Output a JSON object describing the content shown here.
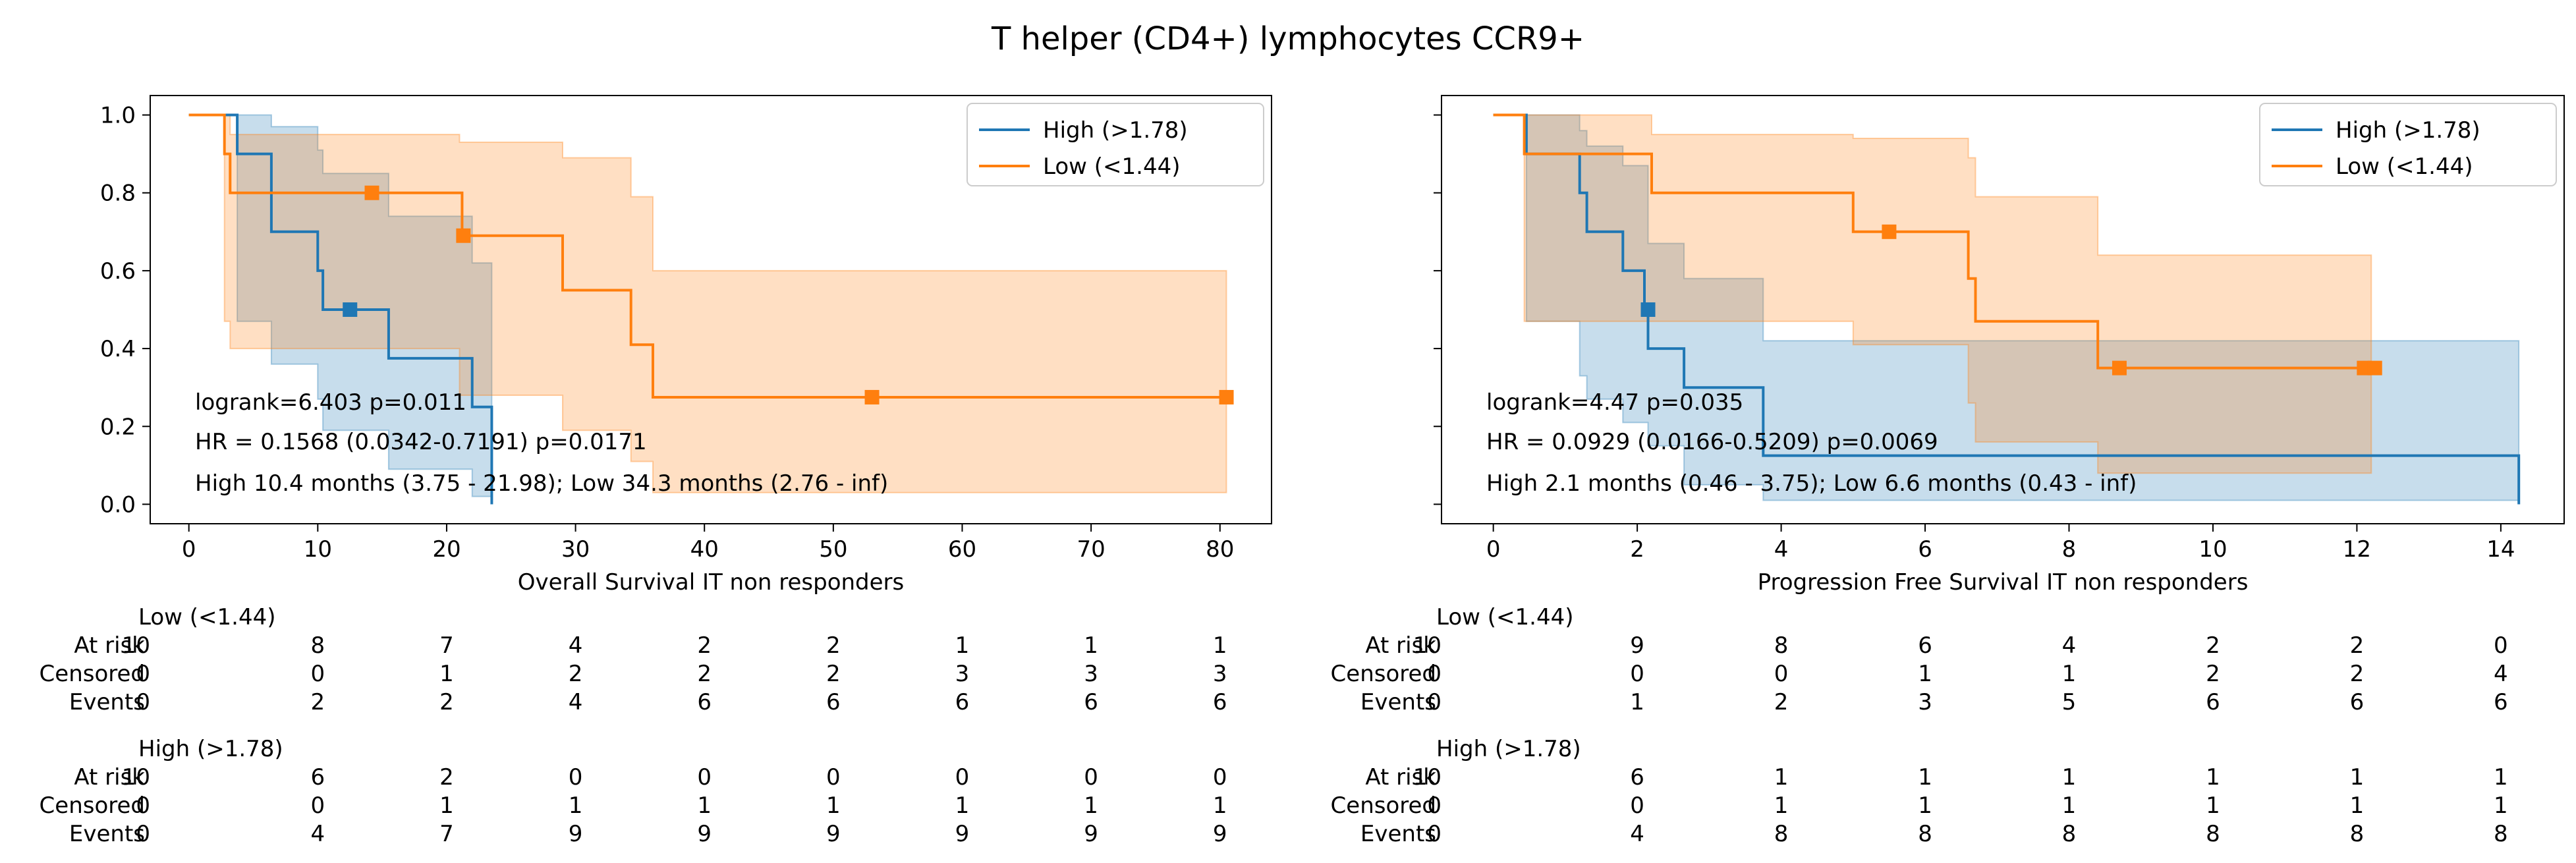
{
  "figure_title": "T helper (CD4+) lymphocytes CCR9+",
  "chart_data": [
    {
      "type": "line",
      "subtype": "kaplan-meier",
      "xlabel": "Overall Survival IT non responders",
      "ylabel": "",
      "xlim": [
        -3,
        84
      ],
      "ylim": [
        -0.05,
        1.05
      ],
      "xticks": [
        0,
        10,
        20,
        30,
        40,
        50,
        60,
        70,
        80
      ],
      "yticks": [
        0.0,
        0.2,
        0.4,
        0.6,
        0.8,
        1.0
      ],
      "ytick_labels": [
        "0.0",
        "0.2",
        "0.4",
        "0.6",
        "0.8",
        "1.0"
      ],
      "grid": false,
      "legend_position": "top-right",
      "series": [
        {
          "name": "High (>1.78)",
          "color": "#1f77b4",
          "steps": [
            [
              0,
              1.0
            ],
            [
              3.75,
              0.9
            ],
            [
              6.4,
              0.8
            ],
            [
              6.4,
              0.7
            ],
            [
              10.0,
              0.6
            ],
            [
              10.4,
              0.5
            ],
            [
              14.0,
              0.5
            ],
            [
              15.5,
              0.375
            ],
            [
              18.0,
              0.375
            ],
            [
              21.98,
              0.25
            ],
            [
              23.5,
              0.0
            ]
          ],
          "end_x": 23.5,
          "censored": [
            [
              12.5,
              0.5
            ]
          ],
          "ci_upper": [
            [
              0,
              1.0
            ],
            [
              3.75,
              1.0
            ],
            [
              6.4,
              0.97
            ],
            [
              10.0,
              0.91
            ],
            [
              10.4,
              0.85
            ],
            [
              15.5,
              0.74
            ],
            [
              21.98,
              0.62
            ],
            [
              23.5,
              0.62
            ]
          ],
          "ci_lower": [
            [
              0,
              1.0
            ],
            [
              3.75,
              0.47
            ],
            [
              6.4,
              0.36
            ],
            [
              10.0,
              0.27
            ],
            [
              10.4,
              0.19
            ],
            [
              15.5,
              0.09
            ],
            [
              21.98,
              0.02
            ],
            [
              23.5,
              0.0
            ]
          ]
        },
        {
          "name": "Low (<1.44)",
          "color": "#ff7f0e",
          "steps": [
            [
              0,
              1.0
            ],
            [
              2.76,
              0.9
            ],
            [
              3.2,
              0.8
            ],
            [
              21.0,
              0.8
            ],
            [
              21.2,
              0.69
            ],
            [
              29.0,
              0.69
            ],
            [
              29.0,
              0.55
            ],
            [
              34.3,
              0.55
            ],
            [
              34.3,
              0.41
            ],
            [
              36.0,
              0.41
            ],
            [
              36.0,
              0.275
            ],
            [
              80.5,
              0.275
            ]
          ],
          "end_x": 80.5,
          "censored": [
            [
              14.2,
              0.8
            ],
            [
              21.3,
              0.69
            ],
            [
              53.0,
              0.275
            ],
            [
              80.5,
              0.275
            ]
          ],
          "ci_upper": [
            [
              0,
              1.0
            ],
            [
              2.76,
              1.0
            ],
            [
              3.2,
              0.95
            ],
            [
              21.0,
              0.93
            ],
            [
              29.0,
              0.89
            ],
            [
              34.3,
              0.79
            ],
            [
              36.0,
              0.6
            ],
            [
              80.5,
              0.6
            ]
          ],
          "ci_lower": [
            [
              0,
              1.0
            ],
            [
              2.76,
              0.47
            ],
            [
              3.2,
              0.4
            ],
            [
              21.0,
              0.28
            ],
            [
              29.0,
              0.19
            ],
            [
              34.3,
              0.11
            ],
            [
              36.0,
              0.03
            ],
            [
              80.5,
              0.03
            ]
          ]
        }
      ],
      "annotations": [
        "logrank=6.403 p=0.011",
        "HR = 0.1568 (0.0342-0.7191) p=0.0171",
        "High 10.4 months (3.75 - 21.98); Low 34.3 months (2.76 - inf)"
      ],
      "risk_table": {
        "x_positions": [
          0,
          10,
          20,
          30,
          40,
          50,
          60,
          70,
          80
        ],
        "groups": [
          {
            "name": "Low (<1.44)",
            "rows": [
              {
                "label": "At risk",
                "values": [
                  "10",
                  "8",
                  "7",
                  "4",
                  "2",
                  "2",
                  "1",
                  "1",
                  "1"
                ]
              },
              {
                "label": "Censored",
                "values": [
                  "0",
                  "0",
                  "1",
                  "2",
                  "2",
                  "2",
                  "3",
                  "3",
                  "3"
                ]
              },
              {
                "label": "Events",
                "values": [
                  "0",
                  "2",
                  "2",
                  "4",
                  "6",
                  "6",
                  "6",
                  "6",
                  "6"
                ]
              }
            ]
          },
          {
            "name": "High (>1.78)",
            "rows": [
              {
                "label": "At risk",
                "values": [
                  "10",
                  "6",
                  "2",
                  "0",
                  "0",
                  "0",
                  "0",
                  "0",
                  "0"
                ]
              },
              {
                "label": "Censored",
                "values": [
                  "0",
                  "0",
                  "1",
                  "1",
                  "1",
                  "1",
                  "1",
                  "1",
                  "1"
                ]
              },
              {
                "label": "Events",
                "values": [
                  "0",
                  "4",
                  "7",
                  "9",
                  "9",
                  "9",
                  "9",
                  "9",
                  "9"
                ]
              }
            ]
          }
        ]
      }
    },
    {
      "type": "line",
      "subtype": "kaplan-meier",
      "xlabel": "Progression Free Survival IT non responders",
      "ylabel": "",
      "xlim": [
        -0.72,
        14.88
      ],
      "ylim": [
        -0.05,
        1.05
      ],
      "xticks": [
        0,
        2,
        4,
        6,
        8,
        10,
        12,
        14
      ],
      "yticks": [
        0.0,
        0.2,
        0.4,
        0.6,
        0.8,
        1.0
      ],
      "ytick_labels": [
        "",
        "",
        "",
        "",
        "",
        ""
      ],
      "grid": false,
      "legend_position": "top-right",
      "series": [
        {
          "name": "High (>1.78)",
          "color": "#1f77b4",
          "steps": [
            [
              0,
              1.0
            ],
            [
              0.46,
              0.9
            ],
            [
              1.2,
              0.8
            ],
            [
              1.3,
              0.7
            ],
            [
              1.8,
              0.6
            ],
            [
              1.95,
              0.6
            ],
            [
              2.1,
              0.5
            ],
            [
              2.15,
              0.4
            ],
            [
              2.65,
              0.3
            ],
            [
              3.75,
              0.2
            ],
            [
              3.75,
              0.125
            ],
            [
              14.25,
              0.125
            ],
            [
              14.25,
              0.0
            ]
          ],
          "end_x": 14.25,
          "censored": [
            [
              2.15,
              0.5
            ]
          ],
          "ci_upper": [
            [
              0,
              1.0
            ],
            [
              0.46,
              1.0
            ],
            [
              1.2,
              0.96
            ],
            [
              1.3,
              0.92
            ],
            [
              1.8,
              0.87
            ],
            [
              2.15,
              0.67
            ],
            [
              2.65,
              0.58
            ],
            [
              3.75,
              0.42
            ],
            [
              14.25,
              0.42
            ]
          ],
          "ci_lower": [
            [
              0,
              1.0
            ],
            [
              0.46,
              0.47
            ],
            [
              1.2,
              0.33
            ],
            [
              1.3,
              0.27
            ],
            [
              1.8,
              0.21
            ],
            [
              2.15,
              0.15
            ],
            [
              2.65,
              0.05
            ],
            [
              3.75,
              0.01
            ],
            [
              14.25,
              0.0
            ]
          ]
        },
        {
          "name": "Low (<1.44)",
          "color": "#ff7f0e",
          "steps": [
            [
              0,
              1.0
            ],
            [
              0.43,
              0.9
            ],
            [
              2.2,
              0.9
            ],
            [
              2.2,
              0.8
            ],
            [
              5.0,
              0.8
            ],
            [
              5.0,
              0.7
            ],
            [
              6.6,
              0.7
            ],
            [
              6.6,
              0.58
            ],
            [
              6.7,
              0.47
            ],
            [
              8.4,
              0.47
            ],
            [
              8.4,
              0.35
            ],
            [
              12.2,
              0.35
            ]
          ],
          "end_x": 12.2,
          "censored": [
            [
              5.5,
              0.7
            ],
            [
              8.7,
              0.35
            ],
            [
              12.1,
              0.35
            ],
            [
              12.25,
              0.35
            ]
          ],
          "ci_upper": [
            [
              0,
              1.0
            ],
            [
              0.43,
              1.0
            ],
            [
              2.2,
              0.95
            ],
            [
              5.0,
              0.94
            ],
            [
              6.6,
              0.89
            ],
            [
              6.7,
              0.79
            ],
            [
              8.4,
              0.64
            ],
            [
              12.2,
              0.64
            ]
          ],
          "ci_lower": [
            [
              0,
              1.0
            ],
            [
              0.43,
              0.47
            ],
            [
              2.2,
              0.47
            ],
            [
              5.0,
              0.41
            ],
            [
              6.6,
              0.26
            ],
            [
              6.7,
              0.16
            ],
            [
              8.4,
              0.08
            ],
            [
              12.2,
              0.08
            ]
          ]
        }
      ],
      "annotations": [
        "logrank=4.47 p=0.035",
        "HR = 0.0929 (0.0166-0.5209) p=0.0069",
        "High 2.1 months (0.46 - 3.75); Low 6.6 months (0.43 - inf)"
      ],
      "risk_table": {
        "x_positions": [
          0,
          2,
          4,
          6,
          8,
          10,
          12,
          14
        ],
        "groups": [
          {
            "name": "Low (<1.44)",
            "rows": [
              {
                "label": "At risk",
                "values": [
                  "10",
                  "9",
                  "8",
                  "6",
                  "4",
                  "2",
                  "2",
                  "0"
                ]
              },
              {
                "label": "Censored",
                "values": [
                  "0",
                  "0",
                  "0",
                  "1",
                  "1",
                  "2",
                  "2",
                  "4"
                ]
              },
              {
                "label": "Events",
                "values": [
                  "0",
                  "1",
                  "2",
                  "3",
                  "5",
                  "6",
                  "6",
                  "6"
                ]
              }
            ]
          },
          {
            "name": "High (>1.78)",
            "rows": [
              {
                "label": "At risk",
                "values": [
                  "10",
                  "6",
                  "1",
                  "1",
                  "1",
                  "1",
                  "1",
                  "1"
                ]
              },
              {
                "label": "Censored",
                "values": [
                  "0",
                  "0",
                  "1",
                  "1",
                  "1",
                  "1",
                  "1",
                  "1"
                ]
              },
              {
                "label": "Events",
                "values": [
                  "0",
                  "4",
                  "8",
                  "8",
                  "8",
                  "8",
                  "8",
                  "8"
                ]
              }
            ]
          }
        ]
      }
    }
  ]
}
